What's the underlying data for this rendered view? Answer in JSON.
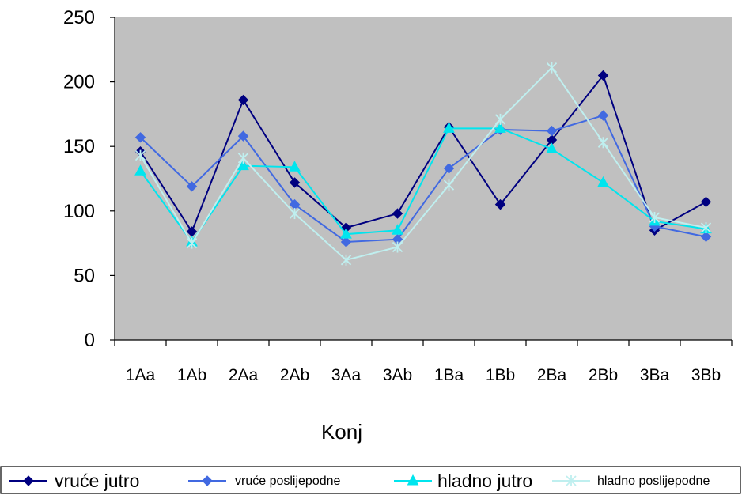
{
  "chart_data": {
    "type": "line",
    "title": "",
    "xlabel": "Konj",
    "ylabel": "",
    "ylim": [
      0,
      250
    ],
    "yticks": [
      0,
      50,
      100,
      150,
      200,
      250
    ],
    "grid": false,
    "plot_background": "#c0c0c0",
    "legend_position": "bottom",
    "categories": [
      "1Aa",
      "1Ab",
      "2Aa",
      "2Ab",
      "3Aa",
      "3Ab",
      "1Ba",
      "1Bb",
      "2Ba",
      "2Bb",
      "3Ba",
      "3Bb"
    ],
    "series": [
      {
        "name": "vruće jutro",
        "marker": "diamond",
        "color": "#000080",
        "values": [
          146,
          84,
          186,
          122,
          87,
          98,
          165,
          105,
          155,
          205,
          85,
          107
        ]
      },
      {
        "name": "vruće poslijepodne",
        "marker": "diamond",
        "color": "#4169e1",
        "values": [
          157,
          119,
          158,
          105,
          76,
          78,
          133,
          163,
          162,
          174,
          88,
          80
        ]
      },
      {
        "name": "hladno jutro",
        "marker": "triangle",
        "color": "#00e5ee",
        "values": [
          131,
          76,
          135,
          134,
          82,
          85,
          164,
          164,
          148,
          122,
          92,
          86
        ]
      },
      {
        "name": "hladno poslijepodne",
        "marker": "x",
        "color": "#bfefef",
        "values": [
          143,
          75,
          141,
          98,
          62,
          72,
          120,
          171,
          211,
          153,
          95,
          87
        ]
      }
    ]
  }
}
